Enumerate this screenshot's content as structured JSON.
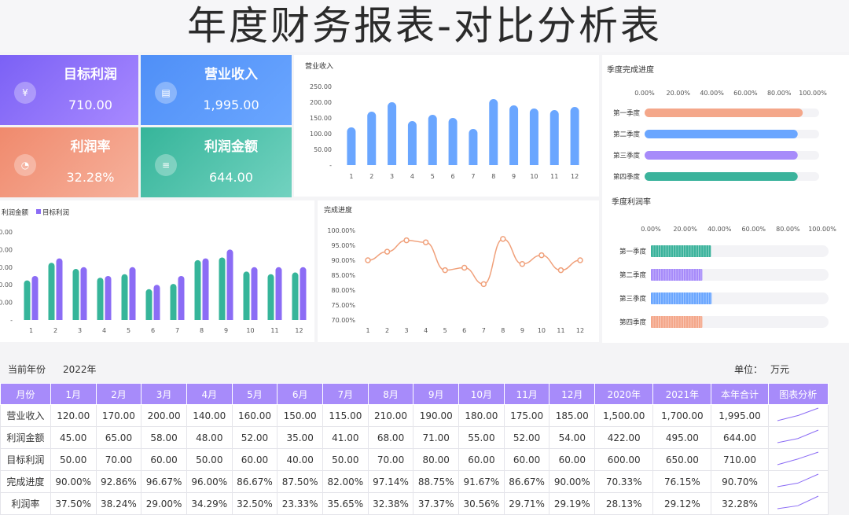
{
  "title": "年度财务报表-对比分析表",
  "kpis": [
    {
      "label": "目标利润",
      "value": "710.00",
      "icon": "yen-card-icon"
    },
    {
      "label": "营业收入",
      "value": "1,995.00",
      "icon": "document-icon"
    },
    {
      "label": "利润率",
      "value": "32.28%",
      "icon": "pie-icon"
    },
    {
      "label": "利润金额",
      "value": "644.00",
      "icon": "coins-icon"
    }
  ],
  "meta": {
    "year_label": "当前年份",
    "year": "2022年",
    "unit_label": "单位：",
    "unit": "万元"
  },
  "table": {
    "headers": [
      "月份",
      "1月",
      "2月",
      "3月",
      "4月",
      "5月",
      "6月",
      "7月",
      "8月",
      "9月",
      "10月",
      "11月",
      "12月",
      "2020年",
      "2021年",
      "本年合计",
      "图表分析"
    ],
    "rows": [
      {
        "name": "营业收入",
        "cells": [
          "120.00",
          "170.00",
          "200.00",
          "140.00",
          "160.00",
          "150.00",
          "115.00",
          "210.00",
          "190.00",
          "180.00",
          "175.00",
          "185.00",
          "1,500.00",
          "1,700.00",
          "1,995.00"
        ],
        "spark": [
          1500,
          1700,
          1995
        ]
      },
      {
        "name": "利润金额",
        "cells": [
          "45.00",
          "65.00",
          "58.00",
          "48.00",
          "52.00",
          "35.00",
          "41.00",
          "68.00",
          "71.00",
          "55.00",
          "52.00",
          "54.00",
          "422.00",
          "495.00",
          "644.00"
        ],
        "spark": [
          422,
          495,
          644
        ]
      },
      {
        "name": "目标利润",
        "cells": [
          "50.00",
          "70.00",
          "60.00",
          "50.00",
          "60.00",
          "40.00",
          "50.00",
          "70.00",
          "80.00",
          "60.00",
          "60.00",
          "60.00",
          "600.00",
          "650.00",
          "710.00"
        ],
        "spark": [
          600,
          650,
          710
        ]
      },
      {
        "name": "完成进度",
        "cells": [
          "90.00%",
          "92.86%",
          "96.67%",
          "96.00%",
          "86.67%",
          "87.50%",
          "82.00%",
          "97.14%",
          "88.75%",
          "91.67%",
          "86.67%",
          "90.00%",
          "70.33%",
          "76.15%",
          "90.70%"
        ],
        "spark": [
          70.33,
          76.15,
          90.7
        ]
      },
      {
        "name": "利润率",
        "cells": [
          "37.50%",
          "38.24%",
          "29.00%",
          "34.29%",
          "32.50%",
          "23.33%",
          "35.65%",
          "32.38%",
          "37.37%",
          "30.56%",
          "29.71%",
          "29.19%",
          "28.13%",
          "29.12%",
          "32.28%"
        ],
        "spark": [
          28.13,
          29.12,
          32.28
        ]
      }
    ]
  },
  "chart_data": [
    {
      "type": "bar",
      "title": "营业收入",
      "categories": [
        "1",
        "2",
        "3",
        "4",
        "5",
        "6",
        "7",
        "8",
        "9",
        "10",
        "11",
        "12"
      ],
      "values": [
        120,
        170,
        200,
        140,
        160,
        150,
        115,
        210,
        190,
        180,
        175,
        185
      ],
      "yticks": [
        "250.00",
        "200.00",
        "150.00",
        "100.00",
        "50.00",
        "-"
      ],
      "ylim": [
        0,
        250
      ],
      "color": "#6aa6ff"
    },
    {
      "type": "bar",
      "title": "",
      "categories": [
        "1",
        "2",
        "3",
        "4",
        "5",
        "6",
        "7",
        "8",
        "9",
        "10",
        "11",
        "12"
      ],
      "series": [
        {
          "name": "利润金额",
          "values": [
            45,
            65,
            58,
            48,
            52,
            35,
            41,
            68,
            71,
            55,
            52,
            54
          ],
          "color": "#36b59a"
        },
        {
          "name": "目标利润",
          "values": [
            50,
            70,
            60,
            50,
            60,
            40,
            50,
            70,
            80,
            60,
            60,
            60
          ],
          "color": "#8b6cf5"
        }
      ],
      "yticks": [
        "0.00",
        "0.00",
        "0.00",
        "0.00",
        "0.00",
        "-"
      ],
      "ylim": [
        0,
        100
      ],
      "legend": "top-left"
    },
    {
      "type": "line",
      "title": "完成进度",
      "x": [
        "1",
        "2",
        "3",
        "4",
        "5",
        "6",
        "7",
        "8",
        "9",
        "10",
        "11",
        "12"
      ],
      "values": [
        90.0,
        92.86,
        96.67,
        96.0,
        86.67,
        87.5,
        82.0,
        97.14,
        88.75,
        91.67,
        86.67,
        90.0
      ],
      "yticks": [
        "100.00%",
        "95.00%",
        "90.00%",
        "85.00%",
        "80.00%",
        "75.00%",
        "70.00%"
      ],
      "ylim": [
        70,
        100
      ],
      "color": "#f0a07a"
    },
    {
      "type": "bar",
      "orientation": "horizontal",
      "title": "季度完成进度",
      "categories": [
        "第一季度",
        "第二季度",
        "第三季度",
        "第四季度"
      ],
      "values": [
        94,
        91,
        91,
        91
      ],
      "xticks": [
        "0.00%",
        "20.00%",
        "40.00%",
        "60.00%",
        "80.00%",
        "100.00%"
      ],
      "xlim": [
        0,
        100
      ],
      "colors": [
        "#f4a78a",
        "#6aa6ff",
        "#a78bfa",
        "#3bb39c"
      ]
    },
    {
      "type": "bar",
      "orientation": "horizontal",
      "title": "季度利润率",
      "categories": [
        "第一季度",
        "第二季度",
        "第三季度",
        "第四季度"
      ],
      "values": [
        35,
        30,
        35.5,
        30
      ],
      "xticks": [
        "0.00%",
        "20.00%",
        "40.00%",
        "60.00%",
        "80.00%",
        "100.00%"
      ],
      "xlim": [
        0,
        100
      ],
      "colors": [
        "#3bb39c",
        "#a78bfa",
        "#6aa6ff",
        "#f4a78a"
      ]
    }
  ]
}
